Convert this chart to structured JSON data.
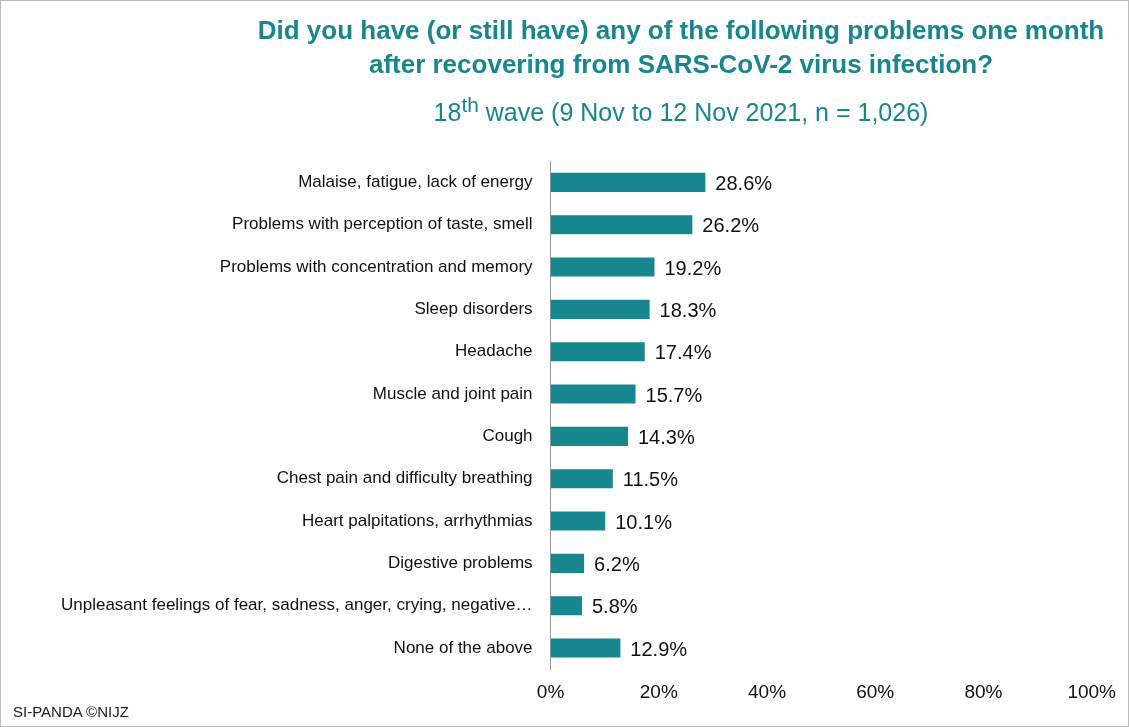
{
  "chart_data": {
    "type": "bar",
    "orientation": "horizontal",
    "title": "Did you have (or still have) any of the following problems one month after recovering from SARS-CoV-2 virus infection?",
    "subtitle": "18$^{th}$ wave (9 Nov to 12 Nov 2021, n = 1,026)",
    "categories": [
      "Malaise, fatigue, lack of energy",
      "Problems with perception of taste, smell",
      "Problems with concentration and memory",
      "Sleep disorders",
      "Headache",
      "Muscle and joint pain",
      "Cough",
      "Chest pain and difficulty breathing",
      "Heart palpitations, arrhythmias",
      "Digestive problems",
      "Unpleasant feelings of fear, sadness, anger, crying, negative…",
      "None of the above"
    ],
    "values": [
      28.6,
      26.2,
      19.2,
      18.3,
      17.4,
      15.7,
      14.3,
      11.5,
      10.1,
      6.2,
      5.8,
      12.9
    ],
    "value_labels": [
      "28.6%",
      "26.2%",
      "19.2%",
      "18.3%",
      "17.4%",
      "15.7%",
      "14.3%",
      "11.5%",
      "10.1%",
      "6.2%",
      "5.8%",
      "12.9%"
    ],
    "color": "#17868f",
    "xlim": [
      0,
      100
    ],
    "xticks": [
      {
        "value": 0,
        "label": "0%"
      },
      {
        "value": 20,
        "label": "20%"
      },
      {
        "value": 40,
        "label": "40%"
      },
      {
        "value": 60,
        "label": "60%"
      },
      {
        "value": 80,
        "label": "80%"
      },
      {
        "value": 100,
        "label": "100%"
      }
    ],
    "grid": false,
    "legend": false,
    "annotations": [
      "SI-PANDA ©NIJZ"
    ]
  }
}
